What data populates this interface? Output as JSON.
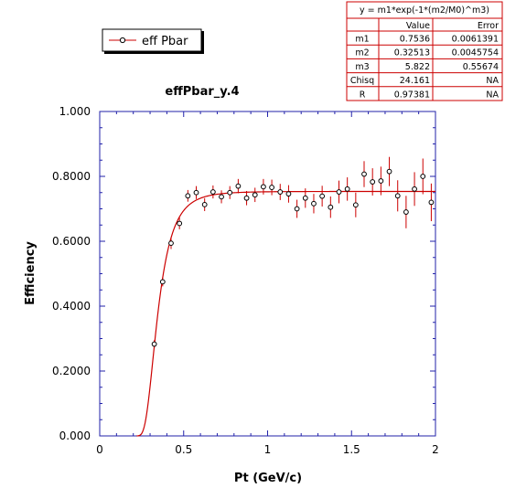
{
  "chart_data": {
    "type": "scatter",
    "title": "effPbar_y.4",
    "xlabel": "Pt (GeV/c)",
    "ylabel": "Efficiency",
    "xlim": [
      0,
      2
    ],
    "ylim": [
      0,
      1
    ],
    "x_ticks": [
      "0",
      "0.5",
      "1",
      "1.5",
      "2"
    ],
    "y_ticks": [
      "0.000",
      "0.2000",
      "0.4000",
      "0.6000",
      "0.8000",
      "1.000"
    ],
    "legend": {
      "label": "eff Pbar",
      "placement": "top-left"
    },
    "series": [
      {
        "name": "eff Pbar",
        "points": [
          {
            "x": 0.325,
            "y": 0.283,
            "err": 0.012
          },
          {
            "x": 0.375,
            "y": 0.475,
            "err": 0.014
          },
          {
            "x": 0.425,
            "y": 0.594,
            "err": 0.018
          },
          {
            "x": 0.475,
            "y": 0.655,
            "err": 0.018
          },
          {
            "x": 0.525,
            "y": 0.74,
            "err": 0.018
          },
          {
            "x": 0.575,
            "y": 0.75,
            "err": 0.02
          },
          {
            "x": 0.625,
            "y": 0.713,
            "err": 0.02
          },
          {
            "x": 0.675,
            "y": 0.752,
            "err": 0.02
          },
          {
            "x": 0.725,
            "y": 0.737,
            "err": 0.02
          },
          {
            "x": 0.775,
            "y": 0.75,
            "err": 0.02
          },
          {
            "x": 0.825,
            "y": 0.77,
            "err": 0.022
          },
          {
            "x": 0.875,
            "y": 0.733,
            "err": 0.022
          },
          {
            "x": 0.925,
            "y": 0.743,
            "err": 0.022
          },
          {
            "x": 0.975,
            "y": 0.768,
            "err": 0.024
          },
          {
            "x": 1.025,
            "y": 0.766,
            "err": 0.024
          },
          {
            "x": 1.075,
            "y": 0.752,
            "err": 0.025
          },
          {
            "x": 1.125,
            "y": 0.746,
            "err": 0.027
          },
          {
            "x": 1.175,
            "y": 0.7,
            "err": 0.028
          },
          {
            "x": 1.225,
            "y": 0.733,
            "err": 0.03
          },
          {
            "x": 1.275,
            "y": 0.716,
            "err": 0.03
          },
          {
            "x": 1.325,
            "y": 0.739,
            "err": 0.032
          },
          {
            "x": 1.375,
            "y": 0.705,
            "err": 0.033
          },
          {
            "x": 1.425,
            "y": 0.752,
            "err": 0.035
          },
          {
            "x": 1.475,
            "y": 0.761,
            "err": 0.036
          },
          {
            "x": 1.525,
            "y": 0.712,
            "err": 0.038
          },
          {
            "x": 1.575,
            "y": 0.807,
            "err": 0.04
          },
          {
            "x": 1.625,
            "y": 0.783,
            "err": 0.042
          },
          {
            "x": 1.675,
            "y": 0.786,
            "err": 0.044
          },
          {
            "x": 1.725,
            "y": 0.815,
            "err": 0.045
          },
          {
            "x": 1.775,
            "y": 0.74,
            "err": 0.048
          },
          {
            "x": 1.825,
            "y": 0.69,
            "err": 0.05
          },
          {
            "x": 1.875,
            "y": 0.761,
            "err": 0.052
          },
          {
            "x": 1.925,
            "y": 0.8,
            "err": 0.055
          },
          {
            "x": 1.975,
            "y": 0.72,
            "err": 0.058
          }
        ]
      }
    ],
    "fit": {
      "formula": "y = m1*exp(-1*(m2/M0)^m3)",
      "params": {
        "m1": 0.7536,
        "m2": 0.32513,
        "m3": 5.822
      },
      "x_start": 0.22
    },
    "fit_table": {
      "formula": "y = m1*exp(-1*(m2/M0)^m3)",
      "headers": [
        "",
        "Value",
        "Error"
      ],
      "rows": [
        [
          "m1",
          "0.7536",
          "0.0061391"
        ],
        [
          "m2",
          "0.32513",
          "0.0045754"
        ],
        [
          "m3",
          "5.822",
          "0.55674"
        ],
        [
          "Chisq",
          "24.161",
          "NA"
        ],
        [
          "R",
          "0.97381",
          "NA"
        ]
      ]
    },
    "colors": {
      "axis": "#2222aa",
      "marker": "#000000",
      "fit": "#cc0000",
      "errorbar": "#cc0000"
    }
  }
}
